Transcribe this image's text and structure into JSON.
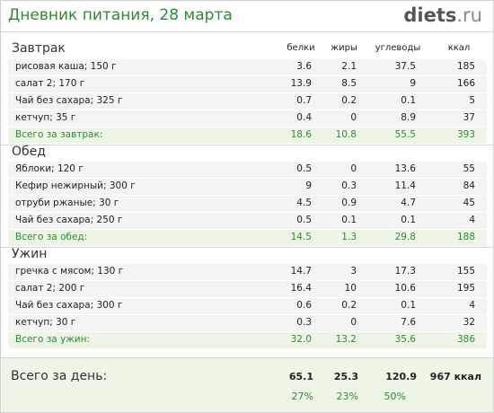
{
  "header": {
    "title": "Дневник питания, 28 марта",
    "logo_main": "diets",
    "logo_tld": ".ru"
  },
  "columns": [
    "белки",
    "жиры",
    "углеводы",
    "ккал"
  ],
  "meals": [
    {
      "name": "Завтрак",
      "items": [
        {
          "name": "рисовая каша; 150 г",
          "vals": [
            "3.6",
            "2.1",
            "37.5",
            "185"
          ]
        },
        {
          "name": "салат 2; 170 г",
          "vals": [
            "13.9",
            "8.5",
            "9",
            "166"
          ]
        },
        {
          "name": "Чай без сахара; 325 г",
          "vals": [
            "0.7",
            "0.2",
            "0.1",
            "5"
          ]
        },
        {
          "name": "кетчуп; 35 г",
          "vals": [
            "0.4",
            "0",
            "8.9",
            "37"
          ]
        }
      ],
      "total": {
        "name": "Всего за завтрак:",
        "vals": [
          "18.6",
          "10.8",
          "55.5",
          "393"
        ]
      }
    },
    {
      "name": "Обед",
      "items": [
        {
          "name": "Яблоки; 120 г",
          "vals": [
            "0.5",
            "0",
            "13.6",
            "55"
          ]
        },
        {
          "name": "Кефир нежирный; 300 г",
          "vals": [
            "9",
            "0.3",
            "11.4",
            "84"
          ]
        },
        {
          "name": "отруби ржаные; 30 г",
          "vals": [
            "4.5",
            "0.9",
            "4.7",
            "45"
          ]
        },
        {
          "name": "Чай без сахара; 250 г",
          "vals": [
            "0.5",
            "0.1",
            "0.1",
            "4"
          ]
        }
      ],
      "total": {
        "name": "Всего за обед:",
        "vals": [
          "14.5",
          "1.3",
          "29.8",
          "188"
        ]
      }
    },
    {
      "name": "Ужин",
      "items": [
        {
          "name": "гречка с мясом; 130 г",
          "vals": [
            "14.7",
            "3",
            "17.3",
            "155"
          ]
        },
        {
          "name": "салат 2; 200 г",
          "vals": [
            "16.4",
            "10",
            "10.6",
            "195"
          ]
        },
        {
          "name": "Чай без сахара; 300 г",
          "vals": [
            "0.6",
            "0.2",
            "0.1",
            "4"
          ]
        },
        {
          "name": "кетчуп; 30 г",
          "vals": [
            "0.3",
            "0",
            "7.6",
            "32"
          ]
        }
      ],
      "total": {
        "name": "Всего за ужин:",
        "vals": [
          "32.0",
          "13.2",
          "35.6",
          "386"
        ]
      }
    }
  ],
  "day_total": {
    "label": "Всего за день:",
    "vals": [
      "65.1",
      "25.3",
      "120.9"
    ],
    "kcal": "967 ккал",
    "percents": [
      "27%",
      "23%",
      "50%"
    ]
  }
}
